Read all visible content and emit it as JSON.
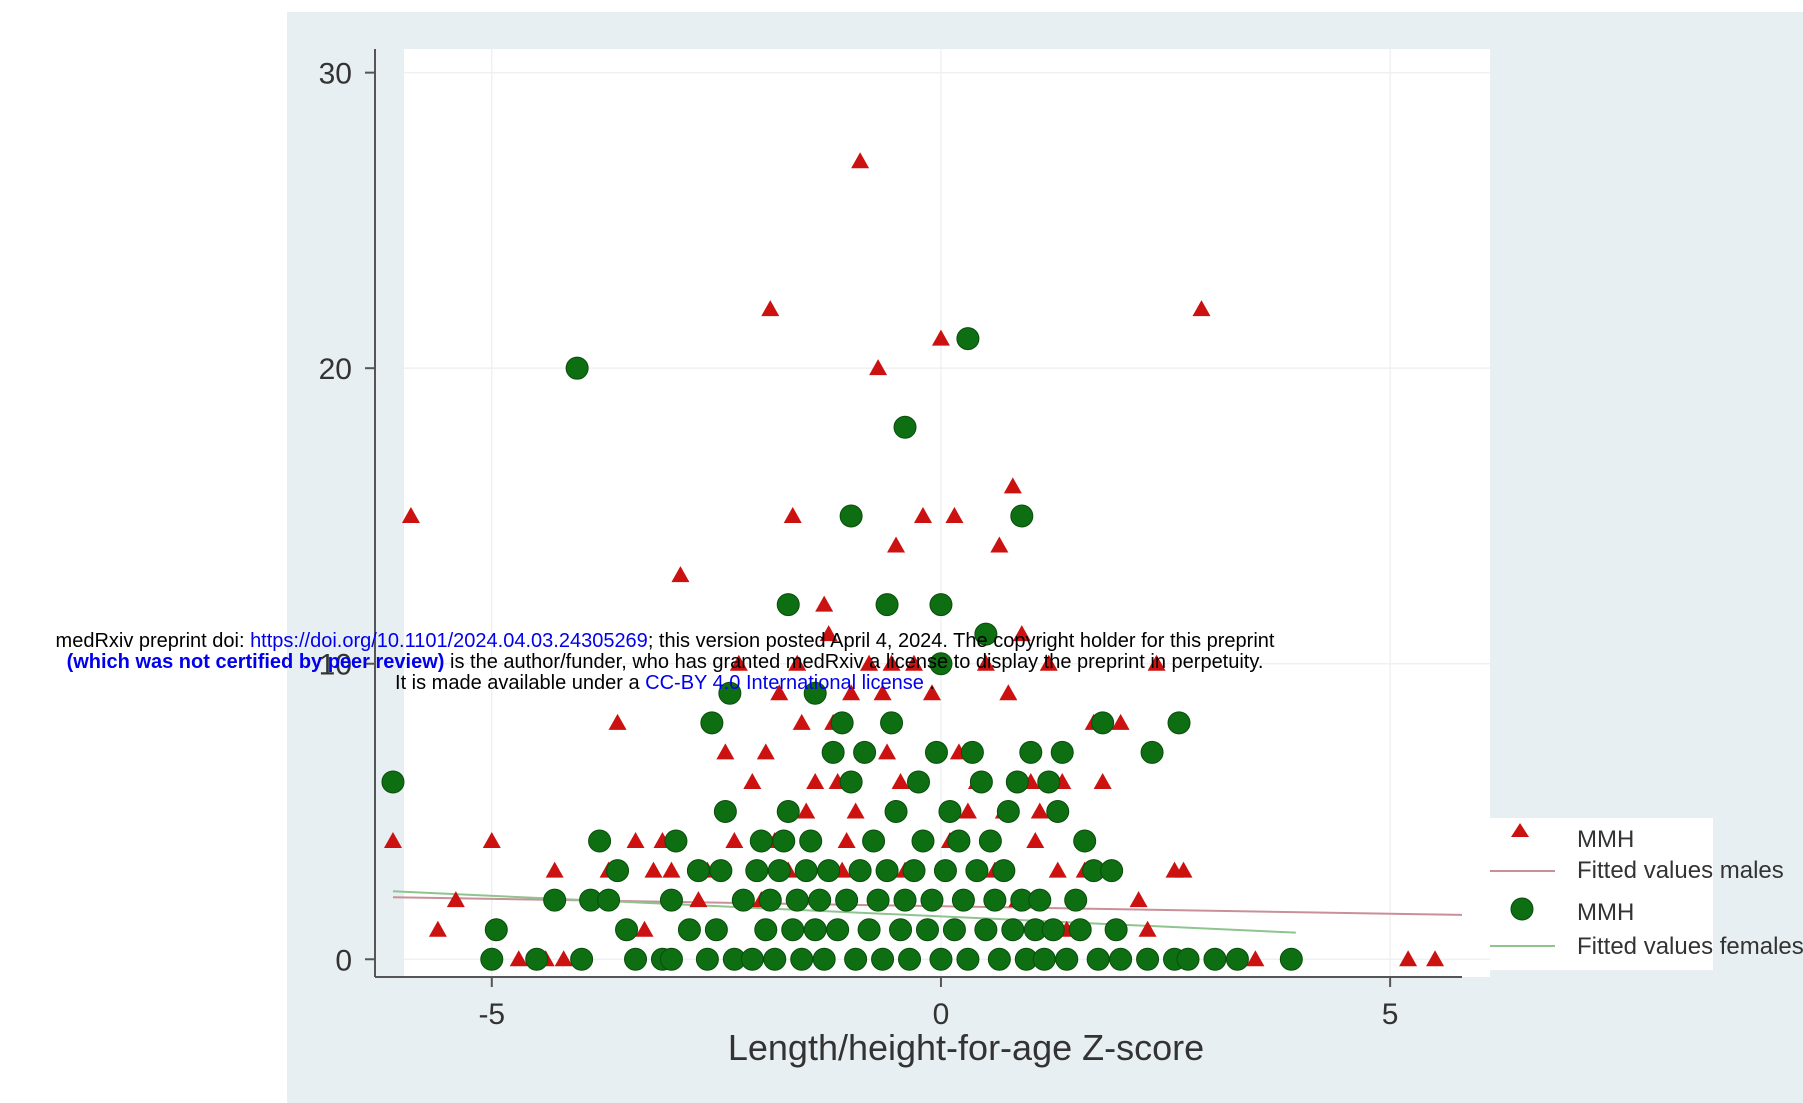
{
  "chart_data": {
    "type": "scatter",
    "title": "",
    "xlabel": "Length/height-for-age Z-score",
    "ylabel": "",
    "xlim": [
      -6.3,
      5.8
    ],
    "ylim": [
      -0.6,
      30.8
    ],
    "xticks": [
      -5,
      0,
      5
    ],
    "yticks": [
      0,
      10,
      20,
      30
    ],
    "x_tick_labels": [
      "-5",
      "0",
      "5"
    ],
    "y_tick_labels": [
      "0",
      "10",
      "20",
      "30"
    ],
    "grid": true,
    "legend_position": "bottom-right",
    "series": [
      {
        "name": "MMH",
        "marker": "triangle",
        "color": "#cc1111",
        "points": [
          [
            -6.1,
            4
          ],
          [
            -5.9,
            15
          ],
          [
            -5.6,
            1
          ],
          [
            -5.4,
            2
          ],
          [
            -5.0,
            4
          ],
          [
            -4.7,
            0
          ],
          [
            -4.4,
            0
          ],
          [
            -4.3,
            3
          ],
          [
            -4.2,
            0
          ],
          [
            -3.7,
            3
          ],
          [
            -3.6,
            8
          ],
          [
            -3.4,
            4
          ],
          [
            -3.3,
            1
          ],
          [
            -3.2,
            3
          ],
          [
            -3.1,
            4
          ],
          [
            -3.0,
            3
          ],
          [
            -2.9,
            13
          ],
          [
            -2.8,
            1
          ],
          [
            -2.7,
            2
          ],
          [
            -2.6,
            3
          ],
          [
            -2.4,
            7
          ],
          [
            -2.3,
            4
          ],
          [
            -2.25,
            10
          ],
          [
            -2.2,
            2
          ],
          [
            -2.1,
            6
          ],
          [
            -2.0,
            2
          ],
          [
            -1.95,
            7
          ],
          [
            -1.9,
            22
          ],
          [
            -1.85,
            4
          ],
          [
            -1.8,
            9
          ],
          [
            -1.7,
            3
          ],
          [
            -1.65,
            15
          ],
          [
            -1.6,
            10
          ],
          [
            -1.55,
            8
          ],
          [
            -1.5,
            5
          ],
          [
            -1.45,
            4
          ],
          [
            -1.4,
            6
          ],
          [
            -1.35,
            2
          ],
          [
            -1.3,
            12
          ],
          [
            -1.25,
            11
          ],
          [
            -1.2,
            8
          ],
          [
            -1.15,
            6
          ],
          [
            -1.1,
            3
          ],
          [
            -1.05,
            4
          ],
          [
            -1.0,
            9
          ],
          [
            -0.95,
            5
          ],
          [
            -0.9,
            27
          ],
          [
            -0.85,
            7
          ],
          [
            -0.8,
            10
          ],
          [
            -0.75,
            4
          ],
          [
            -0.7,
            20
          ],
          [
            -0.65,
            9
          ],
          [
            -0.6,
            7
          ],
          [
            -0.55,
            10
          ],
          [
            -0.5,
            14
          ],
          [
            -0.45,
            6
          ],
          [
            -0.4,
            3
          ],
          [
            -0.3,
            10
          ],
          [
            -0.2,
            15
          ],
          [
            -0.1,
            9
          ],
          [
            0.0,
            21
          ],
          [
            0.1,
            4
          ],
          [
            0.15,
            15
          ],
          [
            0.2,
            7
          ],
          [
            0.3,
            5
          ],
          [
            0.4,
            6
          ],
          [
            0.5,
            10
          ],
          [
            0.6,
            3
          ],
          [
            0.65,
            14
          ],
          [
            0.7,
            5
          ],
          [
            0.75,
            9
          ],
          [
            0.8,
            16
          ],
          [
            0.85,
            2
          ],
          [
            0.9,
            11
          ],
          [
            1.0,
            6
          ],
          [
            1.05,
            4
          ],
          [
            1.1,
            5
          ],
          [
            1.2,
            10
          ],
          [
            1.3,
            3
          ],
          [
            1.35,
            6
          ],
          [
            1.4,
            1
          ],
          [
            1.5,
            2
          ],
          [
            1.6,
            3
          ],
          [
            1.7,
            8
          ],
          [
            1.8,
            6
          ],
          [
            1.9,
            3
          ],
          [
            2.0,
            8
          ],
          [
            2.2,
            2
          ],
          [
            2.3,
            1
          ],
          [
            2.4,
            10
          ],
          [
            2.6,
            3
          ],
          [
            2.7,
            3
          ],
          [
            2.9,
            22
          ],
          [
            3.5,
            0
          ],
          [
            5.2,
            0
          ],
          [
            5.5,
            0
          ]
        ]
      },
      {
        "name": "MMH",
        "marker": "circle",
        "color": "#0d6e12",
        "points": [
          [
            -6.1,
            6
          ],
          [
            -5.0,
            0
          ],
          [
            -4.95,
            1
          ],
          [
            -4.5,
            0
          ],
          [
            -4.3,
            2
          ],
          [
            -4.05,
            20
          ],
          [
            -4.0,
            0
          ],
          [
            -3.9,
            2
          ],
          [
            -3.8,
            4
          ],
          [
            -3.7,
            2
          ],
          [
            -3.6,
            3
          ],
          [
            -3.5,
            1
          ],
          [
            -3.4,
            0
          ],
          [
            -3.1,
            0
          ],
          [
            -3.0,
            0
          ],
          [
            -3.0,
            2
          ],
          [
            -2.95,
            4
          ],
          [
            -2.8,
            1
          ],
          [
            -2.7,
            3
          ],
          [
            -2.6,
            0
          ],
          [
            -2.55,
            8
          ],
          [
            -2.5,
            1
          ],
          [
            -2.45,
            3
          ],
          [
            -2.4,
            5
          ],
          [
            -2.35,
            9
          ],
          [
            -2.3,
            0
          ],
          [
            -2.2,
            2
          ],
          [
            -2.1,
            0
          ],
          [
            -2.05,
            3
          ],
          [
            -2.0,
            4
          ],
          [
            -1.95,
            1
          ],
          [
            -1.9,
            2
          ],
          [
            -1.85,
            0
          ],
          [
            -1.8,
            3
          ],
          [
            -1.75,
            4
          ],
          [
            -1.7,
            5
          ],
          [
            -1.7,
            12
          ],
          [
            -1.65,
            1
          ],
          [
            -1.6,
            2
          ],
          [
            -1.55,
            0
          ],
          [
            -1.5,
            3
          ],
          [
            -1.45,
            4
          ],
          [
            -1.4,
            1
          ],
          [
            -1.4,
            9
          ],
          [
            -1.35,
            2
          ],
          [
            -1.3,
            0
          ],
          [
            -1.25,
            3
          ],
          [
            -1.2,
            7
          ],
          [
            -1.15,
            1
          ],
          [
            -1.1,
            8
          ],
          [
            -1.05,
            2
          ],
          [
            -1.0,
            6
          ],
          [
            -1.0,
            15
          ],
          [
            -0.95,
            0
          ],
          [
            -0.9,
            3
          ],
          [
            -0.85,
            7
          ],
          [
            -0.8,
            1
          ],
          [
            -0.75,
            4
          ],
          [
            -0.7,
            2
          ],
          [
            -0.65,
            0
          ],
          [
            -0.6,
            12
          ],
          [
            -0.6,
            3
          ],
          [
            -0.55,
            8
          ],
          [
            -0.5,
            5
          ],
          [
            -0.45,
            1
          ],
          [
            -0.4,
            18
          ],
          [
            -0.4,
            2
          ],
          [
            -0.35,
            0
          ],
          [
            -0.3,
            3
          ],
          [
            -0.25,
            6
          ],
          [
            -0.2,
            4
          ],
          [
            -0.15,
            1
          ],
          [
            -0.1,
            2
          ],
          [
            -0.05,
            7
          ],
          [
            0.0,
            12
          ],
          [
            0.0,
            10
          ],
          [
            0.0,
            0
          ],
          [
            0.05,
            3
          ],
          [
            0.1,
            5
          ],
          [
            0.15,
            1
          ],
          [
            0.2,
            4
          ],
          [
            0.25,
            2
          ],
          [
            0.3,
            21
          ],
          [
            0.3,
            0
          ],
          [
            0.35,
            7
          ],
          [
            0.4,
            3
          ],
          [
            0.45,
            6
          ],
          [
            0.5,
            11
          ],
          [
            0.5,
            1
          ],
          [
            0.55,
            4
          ],
          [
            0.6,
            2
          ],
          [
            0.65,
            0
          ],
          [
            0.7,
            3
          ],
          [
            0.75,
            5
          ],
          [
            0.8,
            1
          ],
          [
            0.85,
            6
          ],
          [
            0.9,
            15
          ],
          [
            0.9,
            2
          ],
          [
            0.95,
            0
          ],
          [
            1.0,
            7
          ],
          [
            1.05,
            1
          ],
          [
            1.1,
            2
          ],
          [
            1.15,
            0
          ],
          [
            1.2,
            6
          ],
          [
            1.25,
            1
          ],
          [
            1.3,
            5
          ],
          [
            1.35,
            7
          ],
          [
            1.4,
            0
          ],
          [
            1.5,
            2
          ],
          [
            1.55,
            1
          ],
          [
            1.6,
            4
          ],
          [
            1.7,
            3
          ],
          [
            1.75,
            0
          ],
          [
            1.8,
            8
          ],
          [
            1.9,
            3
          ],
          [
            1.95,
            1
          ],
          [
            2.0,
            0
          ],
          [
            2.3,
            0
          ],
          [
            2.35,
            7
          ],
          [
            2.6,
            0
          ],
          [
            2.65,
            8
          ],
          [
            2.75,
            0
          ],
          [
            3.05,
            0
          ],
          [
            3.3,
            0
          ],
          [
            3.9,
            0
          ]
        ]
      }
    ],
    "fitted_lines": [
      {
        "name": "Fitted values males",
        "color": "#c9909a",
        "x": [
          -6.1,
          5.8
        ],
        "y": [
          2.1,
          1.5
        ]
      },
      {
        "name": "Fitted values females",
        "color": "#8fc48f",
        "x": [
          -6.1,
          3.95
        ],
        "y": [
          2.3,
          0.9
        ]
      }
    ],
    "legend": [
      {
        "label": "MMH",
        "marker": "triangle"
      },
      {
        "label": "Fitted values males",
        "marker": "line-male"
      },
      {
        "label": "MMH",
        "marker": "circle"
      },
      {
        "label": "Fitted values females",
        "marker": "line-female"
      }
    ]
  },
  "watermark": {
    "line1_prefix": "medRxiv preprint doi: ",
    "line1_link": "https://doi.org/10.1101/2024.04.03.24305269",
    "line1_suffix": "; this version posted April 4, 2024. The copyright holder for this preprint",
    "line2_bold": "(which was not certified by peer review)",
    "line2_suffix": " is the author/funder, who has granted medRxiv a license to display the preprint in perpetuity.",
    "line3_prefix": "It is made available under a ",
    "line3_link": "CC-BY 4.0 International license",
    "line3_suffix": " ."
  }
}
